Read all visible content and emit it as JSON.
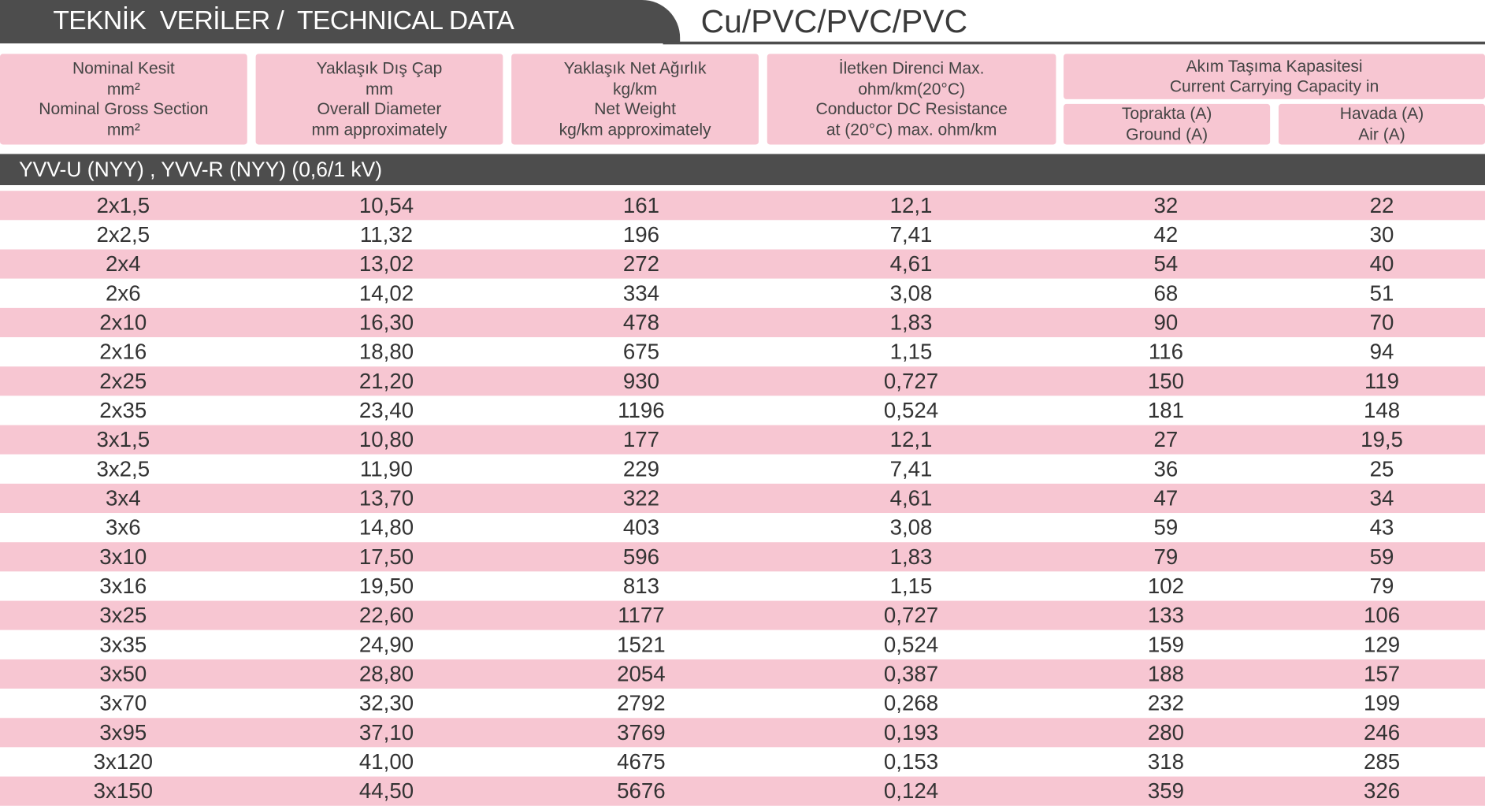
{
  "header": {
    "title": "TEKNİK  VERİLER /  TECHNICAL DATA",
    "subtitle": "Cu/PVC/PVC/PVC"
  },
  "table": {
    "columns": [
      [
        "Nominal Kesit",
        "mm²",
        "Nominal Gross Section",
        "mm²"
      ],
      [
        "Yaklaşık Dış Çap",
        "mm",
        "Overall Diameter",
        "mm approximately"
      ],
      [
        "Yaklaşık Net Ağırlık",
        "kg/km",
        "Net Weight",
        "kg/km approximately"
      ],
      [
        "İletken Direnci Max.",
        "ohm/km(20°C)",
        "Conductor DC Resistance",
        "at (20°C) max. ohm/km"
      ]
    ],
    "group": {
      "lines": [
        "Akım Taşıma Kapasitesi",
        "Current Carrying Capacity in"
      ],
      "columns": [
        [
          "Toprakta (A)",
          "Ground (A)"
        ],
        [
          "Havada (A)",
          "Air (A)"
        ]
      ]
    },
    "section": "YVV-U (NYY) , YVV-R (NYY) (0,6/1 kV)",
    "rows": [
      [
        "2x1,5",
        "10,54",
        "161",
        "12,1",
        "32",
        "22"
      ],
      [
        "2x2,5",
        "11,32",
        "196",
        "7,41",
        "42",
        "30"
      ],
      [
        "2x4",
        "13,02",
        "272",
        "4,61",
        "54",
        "40"
      ],
      [
        "2x6",
        "14,02",
        "334",
        "3,08",
        "68",
        "51"
      ],
      [
        "2x10",
        "16,30",
        "478",
        "1,83",
        "90",
        "70"
      ],
      [
        "2x16",
        "18,80",
        "675",
        "1,15",
        "116",
        "94"
      ],
      [
        "2x25",
        "21,20",
        "930",
        "0,727",
        "150",
        "119"
      ],
      [
        "2x35",
        "23,40",
        "1196",
        "0,524",
        "181",
        "148"
      ],
      [
        "3x1,5",
        "10,80",
        "177",
        "12,1",
        "27",
        "19,5"
      ],
      [
        "3x2,5",
        "11,90",
        "229",
        "7,41",
        "36",
        "25"
      ],
      [
        "3x4",
        "13,70",
        "322",
        "4,61",
        "47",
        "34"
      ],
      [
        "3x6",
        "14,80",
        "403",
        "3,08",
        "59",
        "43"
      ],
      [
        "3x10",
        "17,50",
        "596",
        "1,83",
        "79",
        "59"
      ],
      [
        "3x16",
        "19,50",
        "813",
        "1,15",
        "102",
        "79"
      ],
      [
        "3x25",
        "22,60",
        "1177",
        "0,727",
        "133",
        "106"
      ],
      [
        "3x35",
        "24,90",
        "1521",
        "0,524",
        "159",
        "129"
      ],
      [
        "3x50",
        "28,80",
        "2054",
        "0,387",
        "188",
        "157"
      ],
      [
        "3x70",
        "32,30",
        "2792",
        "0,268",
        "232",
        "199"
      ],
      [
        "3x95",
        "37,10",
        "3769",
        "0,193",
        "280",
        "246"
      ],
      [
        "3x120",
        "41,00",
        "4675",
        "0,153",
        "318",
        "285"
      ],
      [
        "3x150",
        "44,50",
        "5676",
        "0,124",
        "359",
        "326"
      ]
    ]
  }
}
